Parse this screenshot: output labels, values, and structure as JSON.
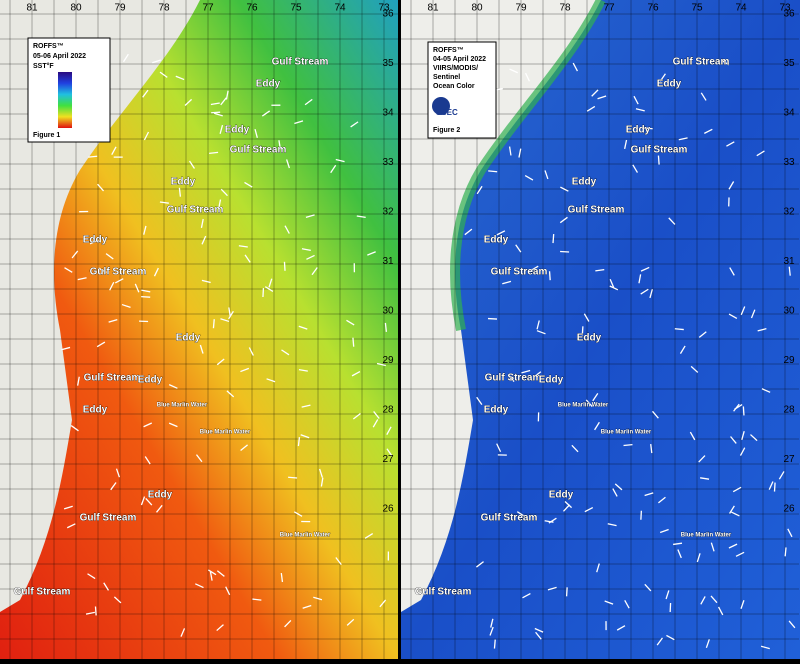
{
  "panels": [
    {
      "legend": {
        "brand": "ROFFS™",
        "dates": "05-06 April 2022",
        "product": "SST°F",
        "figure": "Figure 1"
      },
      "longitudes": [
        "81",
        "80",
        "79",
        "78",
        "77",
        "76",
        "75",
        "74",
        "73"
      ],
      "latitudes": [
        "36",
        "35",
        "34",
        "33",
        "32",
        "31",
        "30",
        "29",
        "28",
        "27",
        "26"
      ],
      "labels": [
        "Gulf Stream",
        "Eddy",
        "Eddy",
        "Gulf Stream",
        "Eddy",
        "Gulf Stream",
        "Eddy",
        "Gulf Stream",
        "Eddy",
        "Gulf Stream",
        "Eddy",
        "Eddy",
        "Gulf Stream",
        "Eddy",
        "Gulf Stream",
        "Blue Marlin Water",
        "Blue Marlin Water",
        "Blue Marlin Water"
      ]
    },
    {
      "legend": {
        "brand": "ROFFS™",
        "dates": "04-05 April 2022",
        "product": "VIIRS/MODIS/",
        "source": "Sentinel",
        "kind": "Ocean Color",
        "logo": "SSEC",
        "figure": "Figure 2"
      },
      "longitudes": [
        "81",
        "80",
        "79",
        "78",
        "77",
        "76",
        "75",
        "74",
        "73"
      ],
      "latitudes": [
        "36",
        "35",
        "34",
        "33",
        "32",
        "31",
        "30",
        "29",
        "28",
        "27",
        "26"
      ],
      "labels": [
        "Gulf Stream",
        "Eddy",
        "Eddy",
        "Gulf Stream",
        "Eddy",
        "Gulf Stream",
        "Eddy",
        "Gulf Stream",
        "Eddy",
        "Gulf Stream",
        "Eddy",
        "Eddy",
        "Gulf Stream",
        "Eddy",
        "Gulf Stream",
        "Blue Marlin Water",
        "Blue Marlin Water",
        "Blue Marlin Water"
      ]
    }
  ]
}
